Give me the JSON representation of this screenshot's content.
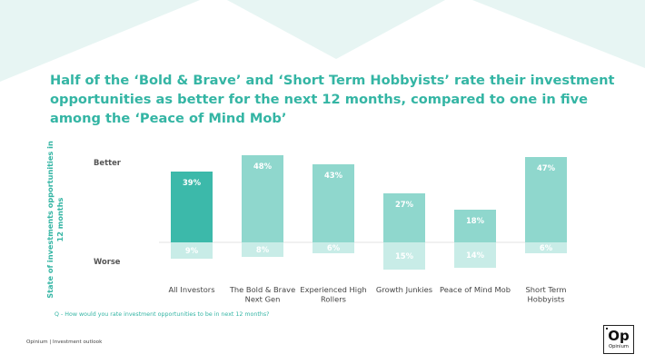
{
  "slide": {
    "title": "Half of the ‘Bold & Brave’ and ‘Short Term Hobbyists’ rate their investment opportunities as better for the next 12 months, compared to one in five among the ‘Peace of Mind Mob’",
    "footnote": "Q - How would you rate investment opportunities to be in next 12 months?",
    "source": "Opinium | Investment outlook",
    "logo_mark": "Op",
    "logo_name": "Opinium"
  },
  "colors": {
    "accent": "#34b5a4",
    "highlight_bar": "#3cb9aa",
    "better_bar": "#8fd7cd",
    "worse_bar": "#c8ece7",
    "decor": "#e7f5f3"
  },
  "chart_data": {
    "type": "bar",
    "ylabel": "State of investments opportunities in 12 months",
    "y_ticks": [
      "Better",
      "Worse"
    ],
    "categories": [
      "All Investors",
      "The Bold & Brave Next Gen",
      "Experienced High Rollers",
      "Growth Junkies",
      "Peace of Mind Mob",
      "Short Term Hobbyists"
    ],
    "series": [
      {
        "name": "Better",
        "values": [
          39,
          48,
          43,
          27,
          18,
          47
        ]
      },
      {
        "name": "Worse",
        "values": [
          9,
          8,
          6,
          15,
          14,
          6
        ]
      }
    ],
    "highlight_index": 0,
    "label_suffix": "%"
  }
}
